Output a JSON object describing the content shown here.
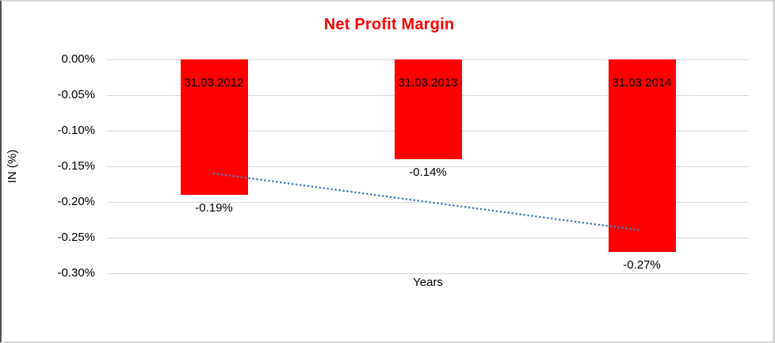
{
  "chart_data": {
    "type": "bar",
    "title": "Net Profit Margin",
    "xlabel": "Years",
    "ylabel": "IN (%)",
    "categories": [
      "31.03.2012",
      "31.03.2013",
      "31.03.2014"
    ],
    "values": [
      -0.19,
      -0.14,
      -0.27
    ],
    "value_labels": [
      "-0.19%",
      "-0.14%",
      "-0.27%"
    ],
    "ylim": [
      -0.3,
      0
    ],
    "ytick_values": [
      0,
      -0.05,
      -0.1,
      -0.15,
      -0.2,
      -0.25,
      -0.3
    ],
    "ytick_labels": [
      "0.00%",
      "-0.05%",
      "-0.10%",
      "-0.15%",
      "-0.20%",
      "-0.25%",
      "-0.30%"
    ],
    "grid": true,
    "legend": "none",
    "colors": {
      "bar": "#ff0000",
      "title": "#ff0000",
      "trendline": "#4a7dba",
      "gridline": "#d9d9d9",
      "text": "#000000"
    },
    "trendline": {
      "type": "linear",
      "style": "dotted",
      "start_value": -0.16,
      "end_value": -0.24
    }
  }
}
